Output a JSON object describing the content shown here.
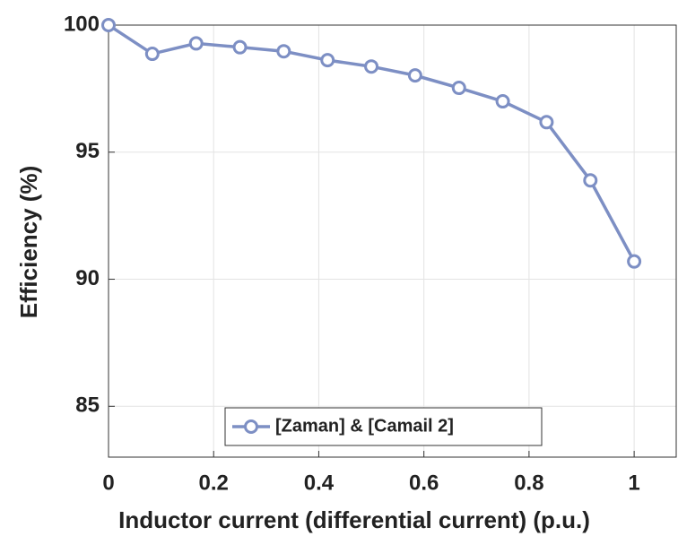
{
  "chart_data": {
    "type": "line",
    "xlabel": "Inductor current (differential current) (p.u.)",
    "ylabel": "Efficiency (%)",
    "x": [
      0,
      0.0833,
      0.1667,
      0.25,
      0.3333,
      0.4167,
      0.5,
      0.5833,
      0.6667,
      0.75,
      0.8333,
      0.9167,
      1
    ],
    "series": [
      {
        "name": "[Zaman] & [Camail 2]",
        "color": "#7d8fc4",
        "values": [
          100,
          98.87,
          99.28,
          99.13,
          98.97,
          98.62,
          98.37,
          98.02,
          97.53,
          97.0,
          96.18,
          93.89,
          90.7
        ]
      }
    ],
    "xlim": [
      0,
      1.08
    ],
    "xticks": [
      0,
      0.2,
      0.4,
      0.6,
      0.8,
      1
    ],
    "ylim": [
      83,
      100
    ],
    "yticks": [
      85,
      90,
      95,
      100
    ],
    "grid": true,
    "legend": "bottom"
  }
}
